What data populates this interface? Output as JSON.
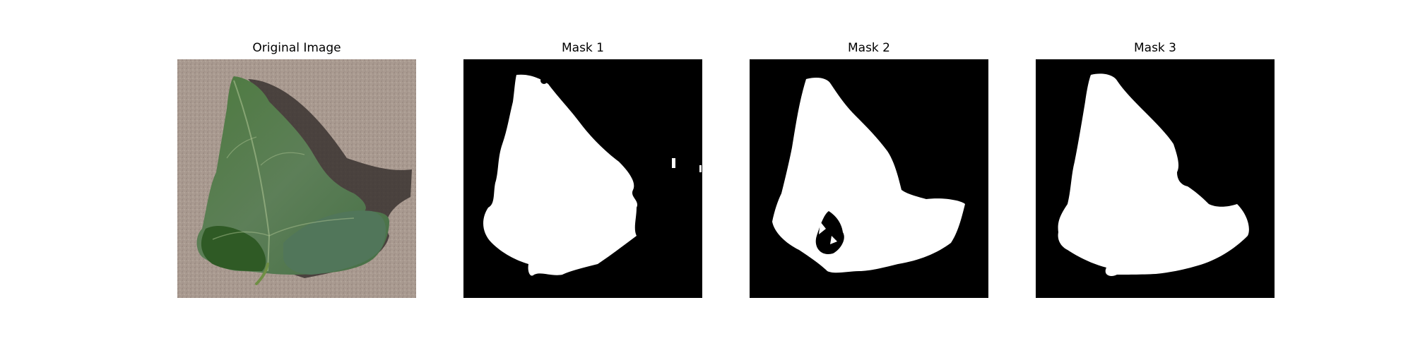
{
  "figure": {
    "panels": [
      {
        "title": "Original Image"
      },
      {
        "title": "Mask 1"
      },
      {
        "title": "Mask 2"
      },
      {
        "title": "Mask 3"
      }
    ]
  },
  "colors": {
    "background": "#ffffff",
    "mask_background": "#000000",
    "mask_foreground": "#ffffff",
    "leaf_green": "#3f6e35",
    "leaf_dark": "#2b4f24",
    "cardboard": "#a8988e",
    "shadow": "#2a2220"
  }
}
